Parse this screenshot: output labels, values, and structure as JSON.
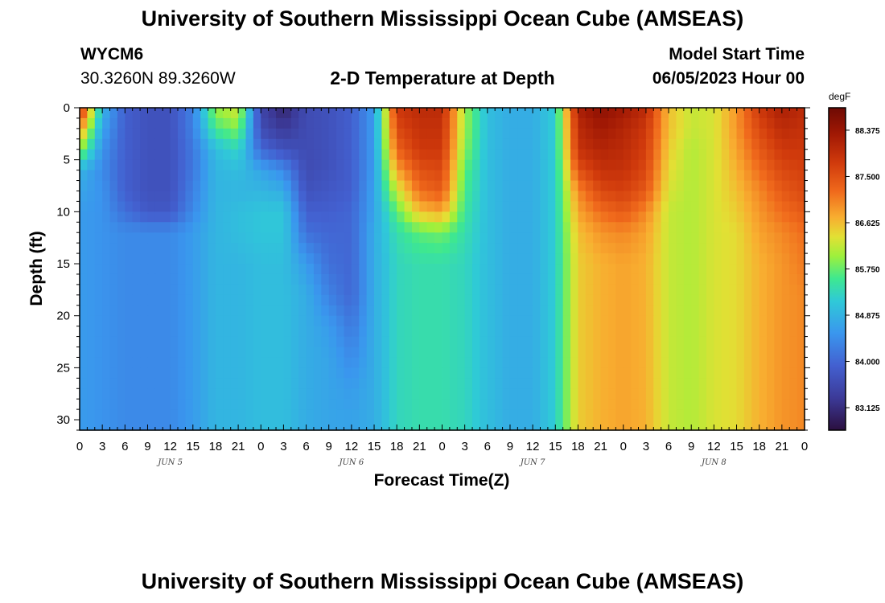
{
  "page": {
    "title": "University of Southern Mississippi Ocean Cube (AMSEAS)",
    "footer_title": "University of Southern Mississippi Ocean Cube (AMSEAS)",
    "station": "WYCM6",
    "location": "30.3260N  89.3260W",
    "model_label": "Model Start Time",
    "model_start": "06/05/2023 Hour 00"
  },
  "chart_data": {
    "type": "heatmap",
    "title": "2-D Temperature at Depth",
    "xlabel": "Forecast Time(Z)",
    "ylabel": "Depth (ft)",
    "colorbar_label": "degF",
    "xlim_hours": [
      0,
      96
    ],
    "ylim_ft": [
      0,
      31
    ],
    "x_tick_labels": [
      "0",
      "3",
      "6",
      "9",
      "12",
      "15",
      "18",
      "21",
      "0",
      "3",
      "6",
      "9",
      "12",
      "15",
      "18",
      "21",
      "0",
      "3",
      "6",
      "9",
      "12",
      "15",
      "18",
      "21",
      "0",
      "3",
      "6",
      "9",
      "12",
      "15",
      "18",
      "21",
      "0"
    ],
    "x_ticks_hours": [
      0,
      3,
      6,
      9,
      12,
      15,
      18,
      21,
      24,
      27,
      30,
      33,
      36,
      39,
      42,
      45,
      48,
      51,
      54,
      57,
      60,
      63,
      66,
      69,
      72,
      75,
      78,
      81,
      84,
      87,
      90,
      93,
      96
    ],
    "day_labels": [
      {
        "label": "JUN 5",
        "hour": 12
      },
      {
        "label": "JUN 6",
        "hour": 36
      },
      {
        "label": "JUN 7",
        "hour": 60
      },
      {
        "label": "JUN 8",
        "hour": 84
      }
    ],
    "y_ticks": [
      0,
      5,
      10,
      15,
      20,
      25,
      30
    ],
    "colorbar_ticks": [
      "88.375",
      "87.500",
      "86.625",
      "85.750",
      "84.875",
      "84.000",
      "83.125"
    ],
    "colorbar_tick_values": [
      88.375,
      87.5,
      86.625,
      85.75,
      84.875,
      84.0,
      83.125
    ],
    "color_range": [
      82.7,
      88.8
    ],
    "time_hours": [
      0,
      3,
      6,
      9,
      12,
      15,
      18,
      21,
      24,
      27,
      30,
      33,
      36,
      39,
      42,
      45,
      48,
      51,
      54,
      57,
      60,
      63,
      66,
      69,
      72,
      75,
      78,
      81,
      84,
      87,
      90,
      93,
      96
    ],
    "depths_ft": [
      0,
      2,
      4,
      6,
      8,
      10,
      12,
      15,
      18,
      21,
      24,
      27,
      31
    ],
    "temperature_f": [
      [
        88.0,
        84.9,
        83.9,
        83.7,
        83.7,
        84.3,
        86.0,
        86.3,
        83.5,
        83.0,
        83.6,
        83.7,
        83.9,
        84.6,
        87.8,
        88.0,
        88.0,
        86.0,
        85.0,
        84.8,
        84.8,
        85.2,
        88.2,
        88.5,
        88.3,
        88.0,
        86.6,
        86.2,
        86.3,
        86.9,
        87.8,
        88.2,
        88.0
      ],
      [
        87.0,
        84.7,
        83.9,
        83.7,
        83.7,
        84.3,
        85.6,
        85.9,
        83.6,
        83.3,
        83.6,
        83.7,
        83.9,
        84.6,
        87.6,
        87.9,
        87.9,
        86.0,
        85.0,
        84.8,
        84.8,
        85.2,
        88.0,
        88.3,
        88.1,
        87.8,
        86.6,
        86.2,
        86.3,
        86.9,
        87.6,
        88.0,
        87.9
      ],
      [
        86.0,
        84.5,
        83.9,
        83.7,
        83.7,
        84.2,
        85.0,
        85.3,
        84.0,
        83.7,
        83.6,
        83.7,
        83.9,
        84.6,
        87.3,
        87.8,
        87.8,
        85.9,
        85.0,
        84.8,
        84.8,
        85.2,
        87.9,
        88.1,
        88.0,
        87.7,
        86.5,
        86.1,
        86.3,
        86.8,
        87.4,
        87.8,
        87.8
      ],
      [
        84.9,
        84.4,
        83.9,
        83.7,
        83.7,
        84.2,
        84.9,
        85.0,
        84.7,
        84.4,
        83.6,
        83.7,
        83.9,
        84.6,
        86.8,
        87.5,
        87.6,
        85.7,
        85.0,
        84.8,
        84.8,
        85.2,
        87.5,
        87.9,
        87.9,
        87.6,
        86.4,
        86.1,
        86.3,
        86.7,
        87.2,
        87.6,
        87.7
      ],
      [
        84.7,
        84.5,
        83.9,
        83.7,
        83.7,
        84.3,
        84.9,
        84.9,
        84.9,
        84.8,
        83.7,
        83.8,
        83.9,
        84.7,
        86.2,
        87.2,
        87.4,
        85.6,
        85.0,
        84.8,
        84.8,
        85.2,
        87.0,
        87.6,
        87.7,
        87.4,
        86.3,
        86.1,
        86.3,
        86.6,
        87.0,
        87.4,
        87.6
      ],
      [
        84.6,
        84.5,
        84.1,
        83.8,
        83.8,
        84.4,
        84.9,
        85.0,
        85.1,
        85.1,
        83.9,
        83.9,
        84.0,
        84.7,
        85.7,
        86.6,
        86.8,
        85.5,
        85.0,
        84.8,
        84.8,
        85.2,
        86.8,
        87.2,
        87.4,
        87.0,
        86.2,
        86.1,
        86.3,
        86.5,
        86.9,
        87.2,
        87.4
      ],
      [
        84.6,
        84.5,
        84.4,
        84.4,
        84.4,
        84.6,
        84.9,
        85.0,
        85.1,
        85.1,
        84.1,
        84.0,
        84.0,
        84.8,
        85.4,
        85.7,
        85.8,
        85.4,
        85.0,
        84.8,
        84.8,
        85.2,
        86.6,
        86.9,
        87.0,
        86.8,
        86.2,
        86.1,
        86.3,
        86.4,
        86.8,
        87.0,
        87.2
      ],
      [
        84.6,
        84.5,
        84.4,
        84.4,
        84.4,
        84.6,
        84.9,
        84.9,
        85.0,
        85.0,
        84.6,
        84.1,
        84.0,
        84.8,
        85.3,
        85.4,
        85.4,
        85.3,
        85.0,
        84.8,
        84.8,
        85.2,
        86.5,
        86.7,
        86.8,
        86.7,
        86.2,
        86.1,
        86.3,
        86.4,
        86.7,
        86.9,
        87.1
      ],
      [
        84.6,
        84.5,
        84.4,
        84.4,
        84.4,
        84.6,
        84.9,
        84.9,
        85.0,
        85.0,
        84.8,
        84.3,
        84.0,
        84.8,
        85.3,
        85.4,
        85.4,
        85.3,
        85.0,
        84.8,
        84.8,
        85.2,
        86.5,
        86.7,
        86.8,
        86.7,
        86.2,
        86.1,
        86.3,
        86.4,
        86.7,
        86.9,
        87.0
      ],
      [
        84.6,
        84.5,
        84.4,
        84.4,
        84.4,
        84.6,
        84.9,
        84.9,
        85.0,
        85.0,
        84.8,
        84.6,
        84.2,
        84.8,
        85.3,
        85.4,
        85.4,
        85.3,
        85.0,
        84.8,
        84.8,
        85.2,
        86.5,
        86.7,
        86.8,
        86.7,
        86.2,
        86.1,
        86.3,
        86.4,
        86.7,
        86.9,
        87.0
      ],
      [
        84.6,
        84.5,
        84.4,
        84.4,
        84.4,
        84.6,
        84.9,
        84.9,
        85.0,
        85.0,
        84.8,
        84.7,
        84.4,
        84.8,
        85.3,
        85.4,
        85.4,
        85.3,
        85.0,
        84.8,
        84.8,
        85.2,
        86.5,
        86.7,
        86.8,
        86.7,
        86.2,
        86.1,
        86.3,
        86.4,
        86.7,
        86.9,
        87.0
      ],
      [
        84.6,
        84.5,
        84.4,
        84.4,
        84.4,
        84.6,
        84.9,
        84.9,
        85.0,
        85.0,
        84.8,
        84.7,
        84.6,
        84.8,
        85.3,
        85.4,
        85.4,
        85.3,
        85.0,
        84.8,
        84.8,
        85.2,
        86.5,
        86.7,
        86.8,
        86.7,
        86.2,
        86.1,
        86.3,
        86.4,
        86.7,
        86.9,
        87.0
      ],
      [
        84.6,
        84.5,
        84.4,
        84.4,
        84.4,
        84.6,
        84.9,
        84.9,
        85.0,
        85.0,
        84.8,
        84.7,
        84.7,
        84.8,
        85.3,
        85.4,
        85.4,
        85.3,
        85.0,
        84.8,
        84.8,
        85.2,
        86.5,
        86.7,
        86.8,
        86.7,
        86.2,
        86.1,
        86.3,
        86.4,
        86.7,
        86.9,
        87.0
      ]
    ],
    "color_stops": [
      {
        "t": 0.0,
        "hex": "#2b0f3f"
      },
      {
        "t": 0.1,
        "hex": "#3c3a98"
      },
      {
        "t": 0.2,
        "hex": "#4360d0"
      },
      {
        "t": 0.3,
        "hex": "#3a96ee"
      },
      {
        "t": 0.4,
        "hex": "#2fc9d8"
      },
      {
        "t": 0.47,
        "hex": "#3ee890"
      },
      {
        "t": 0.54,
        "hex": "#9ef03c"
      },
      {
        "t": 0.6,
        "hex": "#e2e034"
      },
      {
        "t": 0.66,
        "hex": "#f8ae30"
      },
      {
        "t": 0.74,
        "hex": "#f06a1c"
      },
      {
        "t": 0.83,
        "hex": "#d03a0c"
      },
      {
        "t": 0.92,
        "hex": "#a01804"
      },
      {
        "t": 1.0,
        "hex": "#6e0a04"
      }
    ]
  }
}
